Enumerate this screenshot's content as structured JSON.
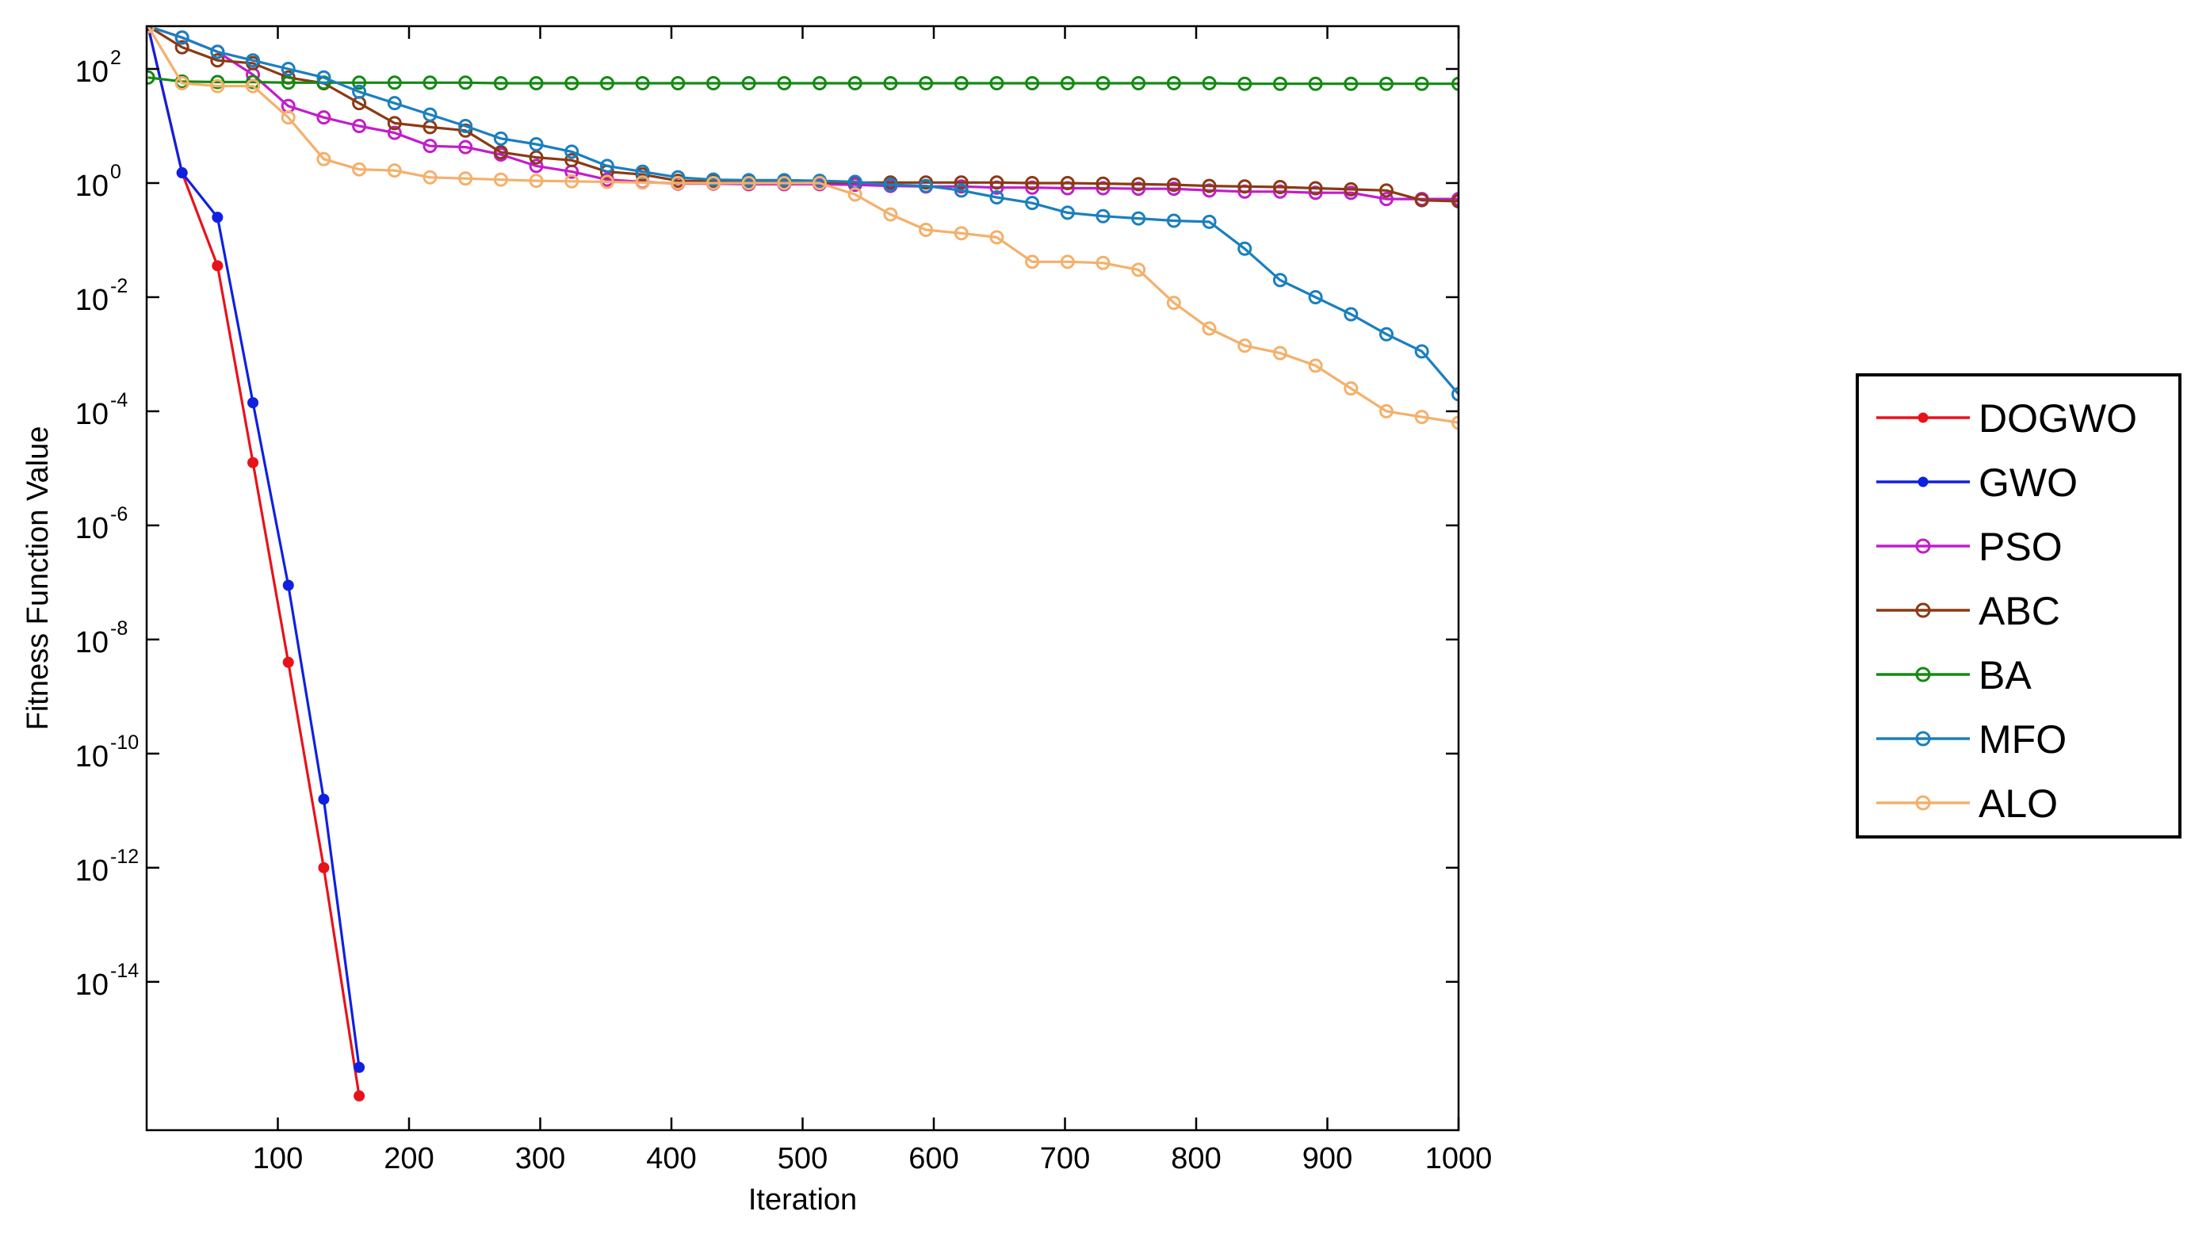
{
  "chart_data": {
    "type": "line",
    "title": "",
    "xlabel": "Iteration",
    "ylabel": "Fitness Function Value",
    "xlim": [
      0,
      1000
    ],
    "ylim_log10": [
      -16.6,
      2
    ],
    "yscale": "log",
    "grid": false,
    "legend_position": "right",
    "x_ticks": [
      100,
      200,
      300,
      400,
      500,
      600,
      700,
      800,
      900,
      1000
    ],
    "y_ticks": [
      {
        "base": "10",
        "exp": "2",
        "log": 2
      },
      {
        "base": "10",
        "exp": "0",
        "log": 0
      },
      {
        "base": "10",
        "exp": "-2",
        "log": -2
      },
      {
        "base": "10",
        "exp": "-4",
        "log": -4
      },
      {
        "base": "10",
        "exp": "-6",
        "log": -6
      },
      {
        "base": "10",
        "exp": "-8",
        "log": -8
      },
      {
        "base": "10",
        "exp": "-10",
        "log": -10
      },
      {
        "base": "10",
        "exp": "-12",
        "log": -12
      },
      {
        "base": "10",
        "exp": "-14",
        "log": -14
      }
    ],
    "series": [
      {
        "name": "DOGWO",
        "color": "#e8121b",
        "marker": "dot",
        "x": [
          1,
          27,
          54,
          81,
          108,
          135,
          162
        ],
        "log10_y": [
          2.75,
          0.18,
          -1.45,
          -4.9,
          -8.4,
          -12.0,
          -16.0
        ]
      },
      {
        "name": "GWO",
        "color": "#1020e0",
        "marker": "dot",
        "x": [
          1,
          27,
          54,
          81,
          108,
          135,
          162
        ],
        "log10_y": [
          2.75,
          0.18,
          -0.6,
          -3.85,
          -7.05,
          -10.8,
          -15.5
        ]
      },
      {
        "name": "PSO",
        "color": "#c21ccc",
        "marker": "circle",
        "x": [
          1,
          27,
          54,
          81,
          108,
          135,
          162,
          189,
          216,
          243,
          270,
          297,
          324,
          351,
          378,
          405,
          432,
          459,
          486,
          513,
          540,
          567,
          594,
          621,
          648,
          675,
          702,
          729,
          756,
          783,
          810,
          837,
          864,
          891,
          918,
          945,
          972,
          1000
        ],
        "log10_y": [
          2.75,
          2.55,
          2.3,
          1.9,
          1.35,
          1.15,
          1.0,
          0.88,
          0.65,
          0.63,
          0.5,
          0.3,
          0.2,
          0.06,
          0.02,
          -0.01,
          -0.01,
          -0.02,
          -0.02,
          -0.02,
          -0.03,
          -0.05,
          -0.06,
          -0.06,
          -0.08,
          -0.08,
          -0.09,
          -0.09,
          -0.1,
          -0.1,
          -0.13,
          -0.15,
          -0.15,
          -0.17,
          -0.17,
          -0.28,
          -0.28,
          -0.28
        ]
      },
      {
        "name": "ABC",
        "color": "#8b3a14",
        "marker": "circle",
        "x": [
          1,
          27,
          54,
          81,
          108,
          135,
          162,
          189,
          216,
          243,
          270,
          297,
          324,
          351,
          378,
          405,
          432,
          459,
          486,
          513,
          540,
          567,
          594,
          621,
          648,
          675,
          702,
          729,
          756,
          783,
          810,
          837,
          864,
          891,
          918,
          945,
          972,
          1000
        ],
        "log10_y": [
          2.75,
          2.38,
          2.15,
          2.1,
          1.85,
          1.75,
          1.4,
          1.05,
          0.98,
          0.92,
          0.54,
          0.45,
          0.4,
          0.2,
          0.15,
          0.04,
          0.03,
          0.02,
          0.02,
          0.01,
          0.01,
          0.01,
          0.01,
          0.01,
          0.01,
          0.0,
          0.0,
          -0.01,
          -0.02,
          -0.03,
          -0.05,
          -0.06,
          -0.07,
          -0.09,
          -0.11,
          -0.13,
          -0.3,
          -0.32
        ]
      },
      {
        "name": "BA",
        "color": "#138a12",
        "marker": "circle",
        "x": [
          1,
          27,
          54,
          81,
          108,
          135,
          162,
          189,
          216,
          243,
          270,
          297,
          324,
          351,
          378,
          405,
          432,
          459,
          486,
          513,
          540,
          567,
          594,
          621,
          648,
          675,
          702,
          729,
          756,
          783,
          810,
          837,
          864,
          891,
          918,
          945,
          972,
          1000
        ],
        "log10_y": [
          1.85,
          1.78,
          1.77,
          1.77,
          1.76,
          1.76,
          1.76,
          1.76,
          1.76,
          1.76,
          1.75,
          1.75,
          1.75,
          1.75,
          1.75,
          1.75,
          1.75,
          1.75,
          1.75,
          1.75,
          1.75,
          1.75,
          1.75,
          1.75,
          1.75,
          1.75,
          1.75,
          1.75,
          1.75,
          1.75,
          1.75,
          1.74,
          1.74,
          1.74,
          1.74,
          1.74,
          1.74,
          1.74
        ]
      },
      {
        "name": "MFO",
        "color": "#1a7fbf",
        "marker": "circle",
        "x": [
          1,
          27,
          54,
          81,
          108,
          135,
          162,
          189,
          216,
          243,
          270,
          297,
          324,
          351,
          378,
          405,
          432,
          459,
          486,
          513,
          540,
          567,
          594,
          621,
          648,
          675,
          702,
          729,
          756,
          783,
          810,
          837,
          864,
          891,
          918,
          945,
          972,
          1000
        ],
        "log10_y": [
          2.75,
          2.55,
          2.3,
          2.15,
          2.0,
          1.85,
          1.6,
          1.4,
          1.2,
          1.0,
          0.78,
          0.68,
          0.55,
          0.3,
          0.2,
          0.1,
          0.06,
          0.05,
          0.05,
          0.04,
          0.02,
          -0.03,
          -0.05,
          -0.13,
          -0.25,
          -0.35,
          -0.52,
          -0.58,
          -0.62,
          -0.66,
          -0.68,
          -1.15,
          -1.7,
          -2.0,
          -2.3,
          -2.65,
          -2.95,
          -3.7
        ]
      },
      {
        "name": "ALO",
        "color": "#f4b06a",
        "marker": "circle",
        "x": [
          1,
          27,
          54,
          81,
          108,
          135,
          162,
          189,
          216,
          243,
          270,
          297,
          324,
          351,
          378,
          405,
          432,
          459,
          486,
          513,
          540,
          567,
          594,
          621,
          648,
          675,
          702,
          729,
          756,
          783,
          810,
          837,
          864,
          891,
          918,
          945,
          972,
          1000
        ],
        "log10_y": [
          2.75,
          1.75,
          1.7,
          1.7,
          1.15,
          0.42,
          0.24,
          0.22,
          0.1,
          0.08,
          0.06,
          0.04,
          0.03,
          0.02,
          0.01,
          0.0,
          0.0,
          0.0,
          0.0,
          0.0,
          -0.2,
          -0.55,
          -0.82,
          -0.88,
          -0.95,
          -1.38,
          -1.38,
          -1.4,
          -1.52,
          -2.1,
          -2.55,
          -2.85,
          -2.98,
          -3.2,
          -3.6,
          -4.0,
          -4.1,
          -4.2
        ]
      }
    ]
  }
}
